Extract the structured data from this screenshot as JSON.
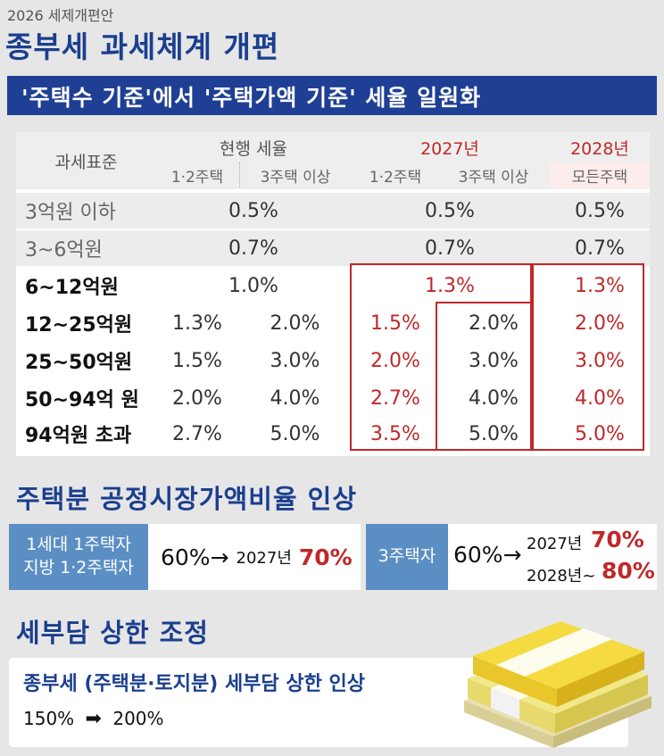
{
  "header": {
    "top_label": "2026 세제개편안",
    "title": "종부세 과세체계 개편",
    "subtitle": "'주택수 기준'에서 '주택가액 기준' 세율 일원화"
  },
  "table": {
    "col_tax_base": "과세표준",
    "current": {
      "title": "현행 세율",
      "sub1": "1·2주택",
      "sub2": "3주택 이상"
    },
    "y2027": {
      "title": "2027년",
      "sub1": "1·2주택",
      "sub2": "3주택 이상"
    },
    "y2028": {
      "title": "2028년",
      "sub1": "모든주택"
    },
    "rows": [
      {
        "bracket": "3억원 이하",
        "current": "0.5%",
        "y2027": "0.5%",
        "y2028": "0.5%"
      },
      {
        "bracket": "3~6억원",
        "current": "0.7%",
        "y2027": "0.7%",
        "y2028": "0.7%"
      },
      {
        "bracket": "6~12억원",
        "current": "1.0%",
        "y2027": "1.3%",
        "y2028": "1.3%"
      },
      {
        "bracket": "12~25억원",
        "cur1": "1.3%",
        "cur2": "2.0%",
        "y27_1": "1.5%",
        "y27_2": "2.0%",
        "y2028": "2.0%"
      },
      {
        "bracket": "25~50억원",
        "cur1": "1.5%",
        "cur2": "3.0%",
        "y27_1": "2.0%",
        "y27_2": "3.0%",
        "y2028": "3.0%"
      },
      {
        "bracket": "50~94억 원",
        "cur1": "2.0%",
        "cur2": "4.0%",
        "y27_1": "2.7%",
        "y27_2": "4.0%",
        "y2028": "4.0%"
      },
      {
        "bracket": "94억원 초과",
        "cur1": "2.7%",
        "cur2": "5.0%",
        "y27_1": "3.5%",
        "y27_2": "5.0%",
        "y2028": "5.0%"
      }
    ]
  },
  "market_ratio": {
    "title": "주택분 공정시장가액비율 인상",
    "group1": {
      "label_line1": "1세대 1주택자",
      "label_line2": "지방 1·2주택자",
      "from": "60%→",
      "year": "2027년",
      "to": "70%"
    },
    "group2": {
      "label": "3주택자",
      "from": "60%→",
      "year1": "2027년",
      "to1": "70%",
      "year2": "2028년~",
      "to2": "80%"
    }
  },
  "cap": {
    "title": "세부담 상한 조정",
    "desc": "종부세 (주택분·토지분) 세부담 상한 인상",
    "from": "150%",
    "arrow": "➡",
    "to": "200%"
  },
  "colors": {
    "navy": "#1b3f8f",
    "bar_blue": "#1f3f94",
    "box_blue": "#5b8fc4",
    "red": "#c0282a"
  }
}
